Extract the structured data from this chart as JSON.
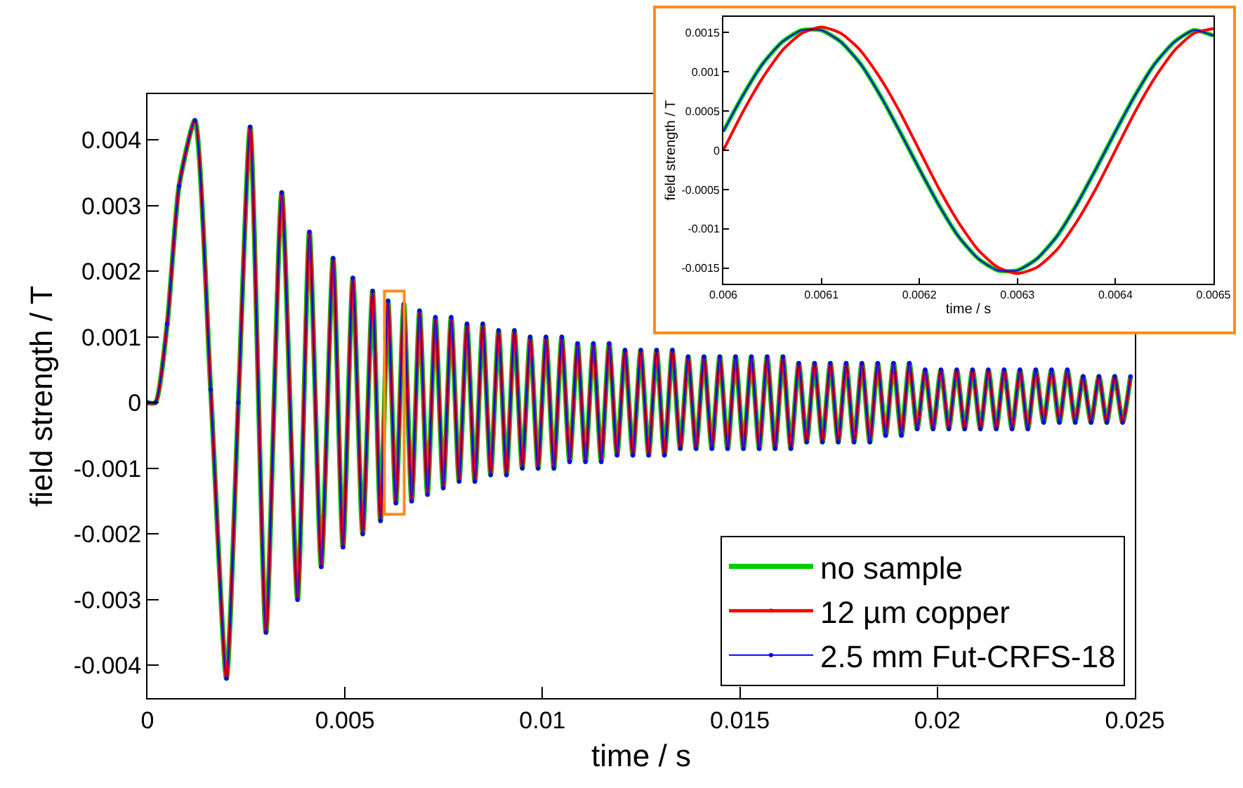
{
  "chart_data": [
    {
      "type": "line",
      "xlabel": "time / s",
      "ylabel": "field strength / T",
      "xlim": [
        0,
        0.025
      ],
      "xticks": [
        0,
        0.005,
        0.01,
        0.015,
        0.02,
        0.025
      ],
      "ylim": [
        -0.0045,
        0.0047
      ],
      "yticks": [
        -0.004,
        -0.003,
        -0.002,
        -0.001,
        0,
        0.001,
        0.002,
        0.003,
        0.004
      ],
      "grid": false,
      "legend": "bottom right",
      "marker": "circle",
      "line_style": "solid",
      "x": [
        0,
        0.0002,
        0.0005,
        0.0008,
        0.0012,
        0.0016,
        0.002,
        0.0023,
        0.0026,
        0.003,
        0.0034,
        0.0038,
        0.0041,
        0.0044,
        0.0047,
        0.00495,
        0.0052,
        0.00545,
        0.0057,
        0.0059,
        0.00609,
        0.00629,
        0.00649,
        0.00669,
        0.00689,
        0.00709,
        0.00729,
        0.00749,
        0.00769,
        0.00789,
        0.00809,
        0.00829,
        0.00849,
        0.00869,
        0.00889,
        0.00909,
        0.00929,
        0.00949,
        0.00969,
        0.00989,
        0.01009,
        0.01029,
        0.01049,
        0.01069,
        0.01089,
        0.01109,
        0.01129,
        0.01149,
        0.01169,
        0.01189,
        0.01209,
        0.01229,
        0.01249,
        0.01269,
        0.01289,
        0.01309,
        0.01329,
        0.01349,
        0.01369,
        0.01389,
        0.01409,
        0.01429,
        0.01449,
        0.01469,
        0.01489,
        0.01509,
        0.01529,
        0.01549,
        0.01569,
        0.01589,
        0.01609,
        0.01629,
        0.01649,
        0.01669,
        0.01689,
        0.01709,
        0.01729,
        0.01749,
        0.01769,
        0.01789,
        0.01809,
        0.01829,
        0.01849,
        0.01869,
        0.01889,
        0.01909,
        0.01929,
        0.01949,
        0.01969,
        0.01989,
        0.02009,
        0.02029,
        0.02049,
        0.02069,
        0.02089,
        0.02109,
        0.02129,
        0.02149,
        0.02169,
        0.02189,
        0.02209,
        0.02229,
        0.02249,
        0.02269,
        0.02289,
        0.02309,
        0.02329,
        0.02349,
        0.02369,
        0.02389,
        0.02409,
        0.02429,
        0.02449,
        0.02469,
        0.02489
      ],
      "series": [
        {
          "name": "no sample",
          "color": "#00cc00",
          "values": [
            0,
            0,
            0.0012,
            0.0033,
            0.0043,
            0.0002,
            -0.0042,
            0,
            0.0042,
            -0.0035,
            0.0032,
            -0.003,
            0.0026,
            -0.0025,
            0.0022,
            -0.0022,
            0.0019,
            -0.002,
            0.0017,
            -0.0018,
            0.00155,
            -0.00153,
            0.0015,
            -0.0015,
            0.0014,
            -0.0014,
            0.0013,
            -0.0013,
            0.0013,
            -0.0012,
            0.0012,
            -0.0012,
            0.0012,
            -0.0011,
            0.0011,
            -0.0011,
            0.0011,
            -0.001,
            0.001,
            -0.001,
            0.001,
            -0.001,
            0.001,
            -0.0009,
            0.0009,
            -0.0009,
            0.0009,
            -0.0009,
            0.0009,
            -0.0008,
            0.0008,
            -0.0008,
            0.0008,
            -0.0008,
            0.0008,
            -0.0008,
            0.0008,
            -0.0007,
            0.0007,
            -0.0007,
            0.0007,
            -0.0007,
            0.0007,
            -0.0007,
            0.0007,
            -0.0007,
            0.0007,
            -0.0007,
            0.0007,
            -0.0007,
            0.0007,
            -0.0007,
            0.0006,
            -0.0006,
            0.0006,
            -0.0006,
            0.0006,
            -0.0006,
            0.0006,
            -0.0006,
            0.0006,
            -0.0006,
            0.0006,
            -0.0005,
            0.0006,
            -0.0005,
            0.0006,
            -0.0004,
            0.0005,
            -0.0004,
            0.0005,
            -0.0004,
            0.0005,
            -0.0004,
            0.0005,
            -0.0004,
            0.0005,
            -0.0004,
            0.0005,
            -0.0004,
            0.0005,
            -0.0004,
            0.0005,
            -0.0003,
            0.0005,
            -0.0003,
            0.0005,
            -0.0003,
            0.0004,
            -0.0003,
            0.0004,
            -0.0003,
            0.0004,
            -0.0003,
            0.0004
          ]
        },
        {
          "name": "12 µm copper",
          "color": "#ff0000",
          "values": [
            0,
            0,
            0.0012,
            0.0033,
            0.0043,
            0.0002,
            -0.0042,
            0,
            0.0042,
            -0.0035,
            0.0032,
            -0.003,
            0.0026,
            -0.0025,
            0.0022,
            -0.0022,
            0.0019,
            -0.002,
            0.0017,
            -0.0018,
            0.00155,
            -0.00153,
            0.0015,
            -0.0015,
            0.0014,
            -0.0014,
            0.0013,
            -0.0013,
            0.0013,
            -0.0012,
            0.0012,
            -0.0012,
            0.0012,
            -0.0011,
            0.0011,
            -0.0011,
            0.0011,
            -0.001,
            0.001,
            -0.001,
            0.001,
            -0.001,
            0.001,
            -0.0009,
            0.0009,
            -0.0009,
            0.0009,
            -0.0009,
            0.0009,
            -0.0008,
            0.0008,
            -0.0008,
            0.0008,
            -0.0008,
            0.0008,
            -0.0008,
            0.0008,
            -0.0007,
            0.0007,
            -0.0007,
            0.0007,
            -0.0007,
            0.0007,
            -0.0007,
            0.0007,
            -0.0007,
            0.0007,
            -0.0007,
            0.0007,
            -0.0007,
            0.0007,
            -0.0007,
            0.0006,
            -0.0006,
            0.0006,
            -0.0006,
            0.0006,
            -0.0006,
            0.0006,
            -0.0006,
            0.0006,
            -0.0006,
            0.0006,
            -0.0005,
            0.0006,
            -0.0005,
            0.0006,
            -0.0004,
            0.0005,
            -0.0004,
            0.0005,
            -0.0004,
            0.0005,
            -0.0004,
            0.0005,
            -0.0004,
            0.0005,
            -0.0004,
            0.0005,
            -0.0004,
            0.0005,
            -0.0004,
            0.0005,
            -0.0003,
            0.0005,
            -0.0003,
            0.0005,
            -0.0003,
            0.0004,
            -0.0003,
            0.0004,
            -0.0003,
            0.0004,
            -0.0003,
            0.0004
          ]
        },
        {
          "name": "2.5 mm Fut-CRFS-18",
          "color": "#0000ff",
          "values": [
            0,
            0,
            0.0012,
            0.0033,
            0.0043,
            0.0002,
            -0.0042,
            0,
            0.0042,
            -0.0035,
            0.0032,
            -0.003,
            0.0026,
            -0.0025,
            0.0022,
            -0.0022,
            0.0019,
            -0.002,
            0.0017,
            -0.0018,
            0.00155,
            -0.00153,
            0.0015,
            -0.0015,
            0.0014,
            -0.0014,
            0.0013,
            -0.0013,
            0.0013,
            -0.0012,
            0.0012,
            -0.0012,
            0.0012,
            -0.0011,
            0.0011,
            -0.0011,
            0.0011,
            -0.001,
            0.001,
            -0.001,
            0.001,
            -0.001,
            0.001,
            -0.0009,
            0.0009,
            -0.0009,
            0.0009,
            -0.0009,
            0.0009,
            -0.0008,
            0.0008,
            -0.0008,
            0.0008,
            -0.0008,
            0.0008,
            -0.0008,
            0.0008,
            -0.0007,
            0.0007,
            -0.0007,
            0.0007,
            -0.0007,
            0.0007,
            -0.0007,
            0.0007,
            -0.0007,
            0.0007,
            -0.0007,
            0.0007,
            -0.0007,
            0.0007,
            -0.0007,
            0.0006,
            -0.0006,
            0.0006,
            -0.0006,
            0.0006,
            -0.0006,
            0.0006,
            -0.0006,
            0.0006,
            -0.0006,
            0.0006,
            -0.0005,
            0.0006,
            -0.0005,
            0.0006,
            -0.0004,
            0.0005,
            -0.0004,
            0.0005,
            -0.0004,
            0.0005,
            -0.0004,
            0.0005,
            -0.0004,
            0.0005,
            -0.0004,
            0.0005,
            -0.0004,
            0.0005,
            -0.0004,
            0.0005,
            -0.0003,
            0.0005,
            -0.0003,
            0.0005,
            -0.0003,
            0.0004,
            -0.0003,
            0.0004,
            -0.0003,
            0.0004,
            -0.0003,
            0.0004
          ]
        }
      ]
    },
    {
      "type": "line",
      "xlabel": "time / s",
      "ylabel": "field strength / T",
      "xlim": [
        0.006,
        0.0065
      ],
      "xticks": [
        0.006,
        0.0061,
        0.0062,
        0.0063,
        0.0064,
        0.0065
      ],
      "ylim": [
        -0.0017,
        0.0017
      ],
      "yticks": [
        -0.0015,
        -0.001,
        -0.0005,
        0,
        0.0005,
        0.001,
        0.0015
      ],
      "grid": false,
      "legend": false,
      "line_style": "solid",
      "x": [
        0.006,
        0.00602,
        0.00604,
        0.00606,
        0.00608,
        0.0061,
        0.00612,
        0.00614,
        0.00616,
        0.00618,
        0.0062,
        0.00622,
        0.00624,
        0.00626,
        0.00628,
        0.0063,
        0.00632,
        0.00634,
        0.00636,
        0.00638,
        0.0064,
        0.00642,
        0.00644,
        0.00646,
        0.00648,
        0.0065
      ],
      "series": [
        {
          "color": "#00cc00",
          "values": [
            0.00024,
            0.0007,
            0.0011,
            0.00138,
            0.00153,
            0.00153,
            0.00138,
            0.0011,
            0.0007,
            0.00024,
            -0.00024,
            -0.0007,
            -0.0011,
            -0.00138,
            -0.00153,
            -0.00153,
            -0.00138,
            -0.0011,
            -0.0007,
            -0.00024,
            0.00024,
            0.0007,
            0.0011,
            0.00138,
            0.00153,
            0.00146
          ]
        },
        {
          "color": "#ff0000",
          "values": [
            0,
            0.00049,
            0.00092,
            0.00127,
            0.00149,
            0.00157,
            0.00149,
            0.00127,
            0.00092,
            0.00049,
            0,
            -0.00049,
            -0.00092,
            -0.00127,
            -0.00149,
            -0.00157,
            -0.00149,
            -0.00127,
            -0.00092,
            -0.00049,
            0,
            0.00049,
            0.00092,
            0.00127,
            0.00149,
            0.00155
          ]
        },
        {
          "color": "#0000ff",
          "values": [
            0.00024,
            0.0007,
            0.0011,
            0.00138,
            0.00153,
            0.00153,
            0.00138,
            0.0011,
            0.0007,
            0.00024,
            -0.00024,
            -0.0007,
            -0.0011,
            -0.00138,
            -0.00153,
            -0.00153,
            -0.00138,
            -0.0011,
            -0.0007,
            -0.00024,
            0.00024,
            0.0007,
            0.0011,
            0.00138,
            0.00153,
            0.00146
          ]
        }
      ]
    }
  ]
}
